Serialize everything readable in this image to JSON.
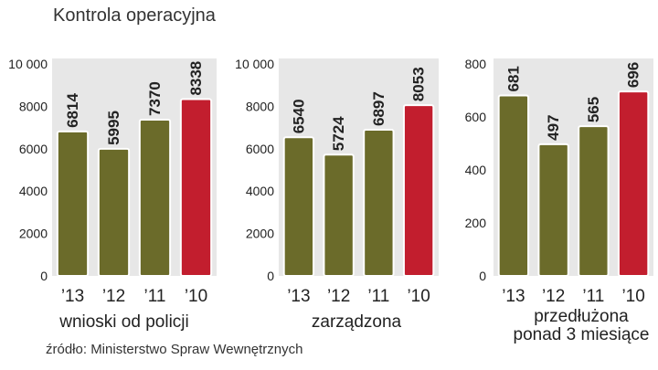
{
  "title": "Kontrola operacyjna",
  "source": "źródło: Ministerstwo Spraw Wewnętrznych",
  "colors": {
    "olive": "#6b6b2a",
    "red": "#c21e2e",
    "panel": "#e7e7e7",
    "text": "#222222"
  },
  "chart_data": [
    {
      "type": "bar",
      "title": "wnioski od policji",
      "categories": [
        "’13",
        "’12",
        "’11",
        "’10"
      ],
      "values": [
        6814,
        5995,
        7370,
        8338
      ],
      "ylim": [
        0,
        10000
      ],
      "yticks": [
        "10 000",
        "8000",
        "6000",
        "4000",
        "2000",
        "0"
      ],
      "ytick_values": [
        10000,
        8000,
        6000,
        4000,
        2000,
        0
      ]
    },
    {
      "type": "bar",
      "title": "zarządzona",
      "categories": [
        "’13",
        "’12",
        "’11",
        "’10"
      ],
      "values": [
        6540,
        5724,
        6897,
        8053
      ],
      "ylim": [
        0,
        10000
      ],
      "yticks": [
        "10 000",
        "8000",
        "6000",
        "4000",
        "2000",
        "0"
      ],
      "ytick_values": [
        10000,
        8000,
        6000,
        4000,
        2000,
        0
      ]
    },
    {
      "type": "bar",
      "title_lines": [
        "przedłużona",
        "ponad 3 miesiące"
      ],
      "categories": [
        "’13",
        "’12",
        "’11",
        "’10"
      ],
      "values": [
        681,
        497,
        565,
        696
      ],
      "ylim": [
        0,
        800
      ],
      "yticks": [
        "800",
        "600",
        "400",
        "200",
        "0"
      ],
      "ytick_values": [
        800,
        600,
        400,
        200,
        0
      ]
    }
  ]
}
